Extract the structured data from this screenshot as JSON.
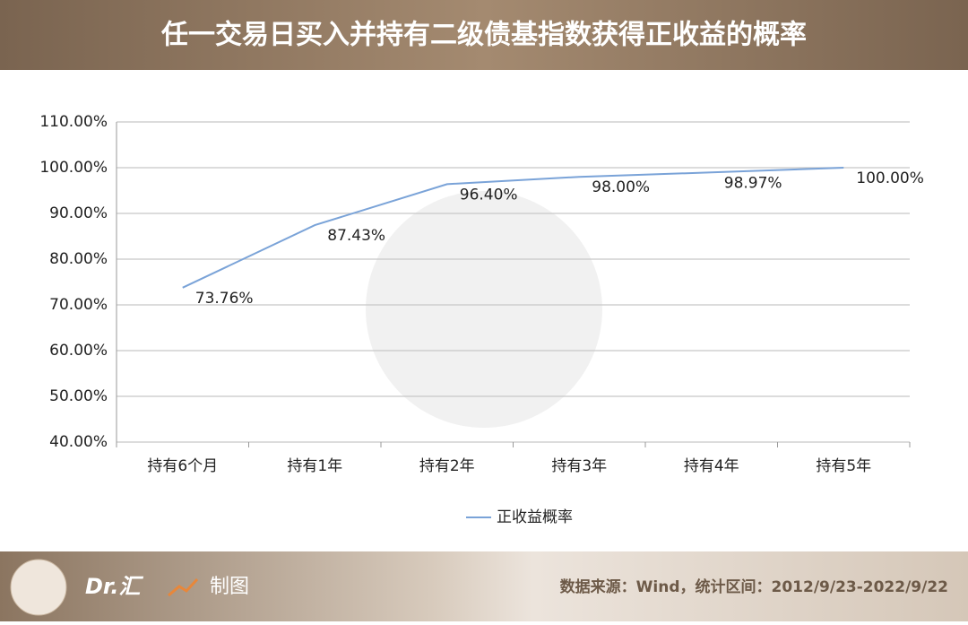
{
  "chart_data": {
    "type": "line",
    "title": "任一交易日买入并持有二级债基指数获得正收益的概率",
    "categories": [
      "持有6个月",
      "持有1年",
      "持有2年",
      "持有3年",
      "持有4年",
      "持有5年"
    ],
    "series": [
      {
        "name": "正收益概率",
        "color": "#7aa3d8",
        "values": [
          73.76,
          87.43,
          96.4,
          98.0,
          98.97,
          100.0
        ],
        "value_labels": [
          "73.76%",
          "87.43%",
          "96.40%",
          "98.00%",
          "98.97%",
          "100.00%"
        ]
      }
    ],
    "ylim": [
      40,
      110
    ],
    "yticks": [
      {
        "value": 40,
        "label": "40.00%"
      },
      {
        "value": 50,
        "label": "50.00%"
      },
      {
        "value": 60,
        "label": "60.00%"
      },
      {
        "value": 70,
        "label": "70.00%"
      },
      {
        "value": 80,
        "label": "80.00%"
      },
      {
        "value": 90,
        "label": "90.00%"
      },
      {
        "value": 100,
        "label": "100.00%"
      },
      {
        "value": 110,
        "label": "110.00%"
      }
    ],
    "grid": true
  },
  "footer": {
    "brand": "Dr.汇",
    "action": "制图",
    "source": "数据来源：Wind，统计区间：2012/9/23-2022/9/22"
  }
}
